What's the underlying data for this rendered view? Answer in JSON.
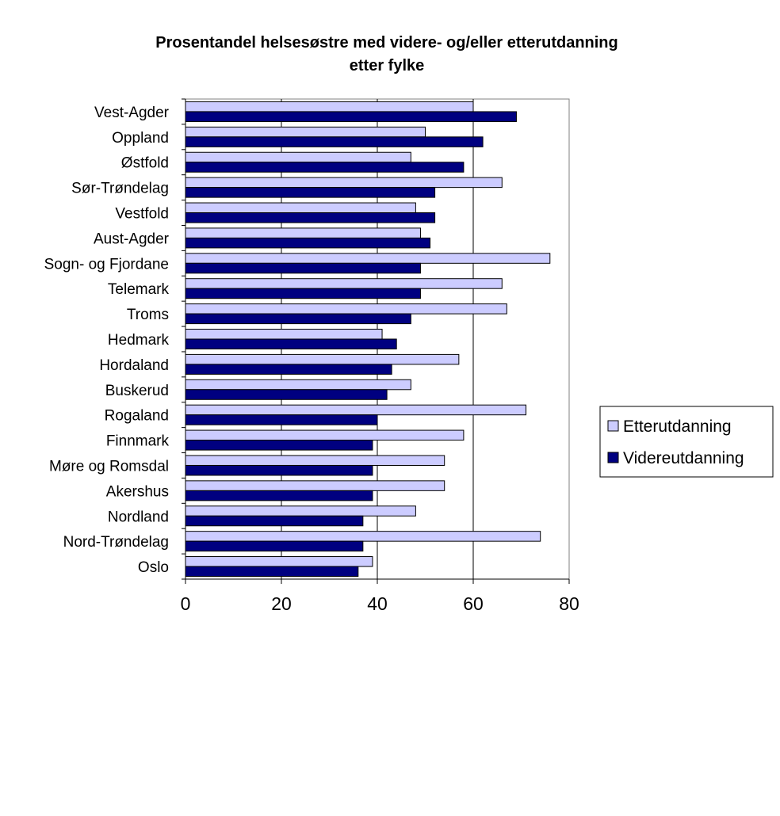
{
  "chart_data": {
    "type": "bar",
    "orientation": "horizontal",
    "title": "Prosentandel helsesøstre med videre- og/eller etterutdanning",
    "subtitle": "etter fylke",
    "xlim": [
      0,
      80
    ],
    "xticks": [
      "0",
      "20",
      "40",
      "60",
      "80"
    ],
    "grid": true,
    "legend_position": "right",
    "categories": [
      "Vest-Agder",
      "Oppland",
      "Østfold",
      "Sør-Trøndelag",
      "Vestfold",
      "Aust-Agder",
      "Sogn- og Fjordane",
      "Telemark",
      "Troms",
      "Hedmark",
      "Hordaland",
      "Buskerud",
      "Rogaland",
      "Finnmark",
      "Møre og Romsdal",
      "Akershus",
      "Nordland",
      "Nord-Trøndelag",
      "Oslo"
    ],
    "series": [
      {
        "name": "Etterutdanning",
        "color": "#ccccff",
        "values": [
          60,
          50,
          47,
          66,
          48,
          49,
          76,
          66,
          67,
          41,
          57,
          47,
          71,
          58,
          54,
          54,
          48,
          74,
          39
        ]
      },
      {
        "name": "Videreutdanning",
        "color": "#000080",
        "values": [
          69,
          62,
          58,
          52,
          52,
          51,
          49,
          49,
          47,
          44,
          43,
          42,
          40,
          39,
          39,
          39,
          37,
          37,
          36
        ]
      }
    ]
  }
}
